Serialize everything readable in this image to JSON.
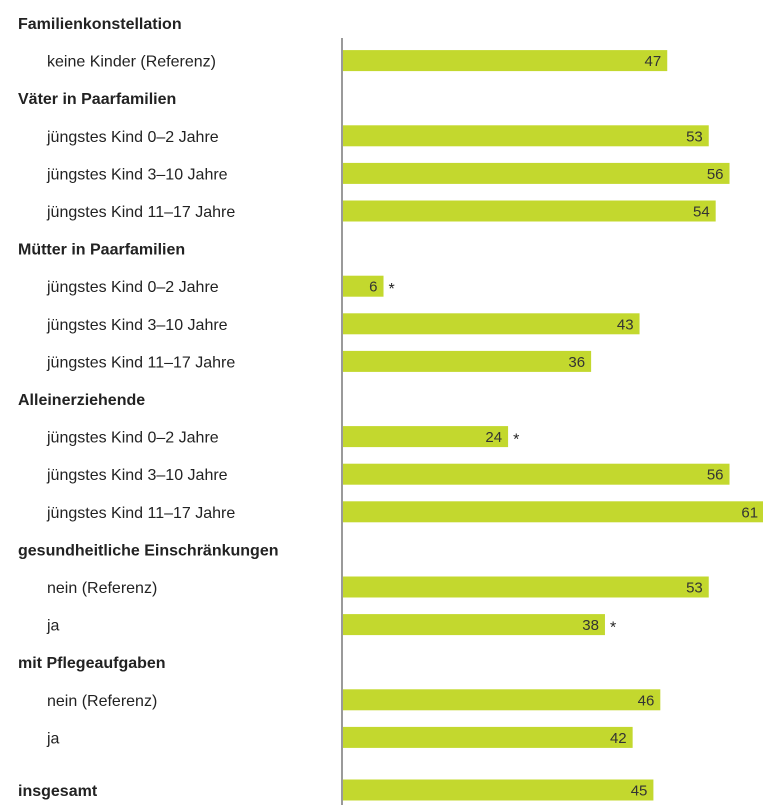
{
  "colors": {
    "bar": "#c3d82e",
    "axis": "#9a9a9a",
    "text": "#222222"
  },
  "chart_data": {
    "type": "bar",
    "orientation": "horizontal",
    "title": "",
    "xlabel": "",
    "ylabel": "",
    "xlim": [
      0,
      61
    ],
    "grid": false,
    "legend": "none",
    "rows": [
      {
        "label": "Familienkonstellation",
        "header": true
      },
      {
        "label": "keine Kinder (Referenz)",
        "value": 47
      },
      {
        "label": "Väter in Paarfamilien",
        "header": true
      },
      {
        "label": "jüngstes Kind 0–2 Jahre",
        "value": 53
      },
      {
        "label": "jüngstes Kind 3–10 Jahre",
        "value": 56
      },
      {
        "label": "jüngstes Kind 11–17 Jahre",
        "value": 54
      },
      {
        "label": "Mütter in Paarfamilien",
        "header": true
      },
      {
        "label": "jüngstes Kind 0–2 Jahre",
        "value": 6,
        "star": "*"
      },
      {
        "label": "jüngstes Kind 3–10 Jahre",
        "value": 43
      },
      {
        "label": "jüngstes Kind 11–17 Jahre",
        "value": 36
      },
      {
        "label": "Alleinerziehende",
        "header": true
      },
      {
        "label": "jüngstes Kind 0–2 Jahre",
        "value": 24,
        "star": "*"
      },
      {
        "label": "jüngstes Kind 3–10 Jahre",
        "value": 56
      },
      {
        "label": "jüngstes Kind 11–17 Jahre",
        "value": 61
      },
      {
        "label": "gesundheitliche Einschränkungen",
        "header": true
      },
      {
        "label": "nein (Referenz)",
        "value": 53
      },
      {
        "label": "ja",
        "value": 38,
        "star": "*"
      },
      {
        "label": "mit Pflegeaufgaben",
        "header": true
      },
      {
        "label": "nein (Referenz)",
        "value": 46
      },
      {
        "label": "ja",
        "value": 42
      },
      {
        "label": "insgesamt",
        "header": true,
        "value": 45,
        "gap_before": true
      }
    ]
  }
}
